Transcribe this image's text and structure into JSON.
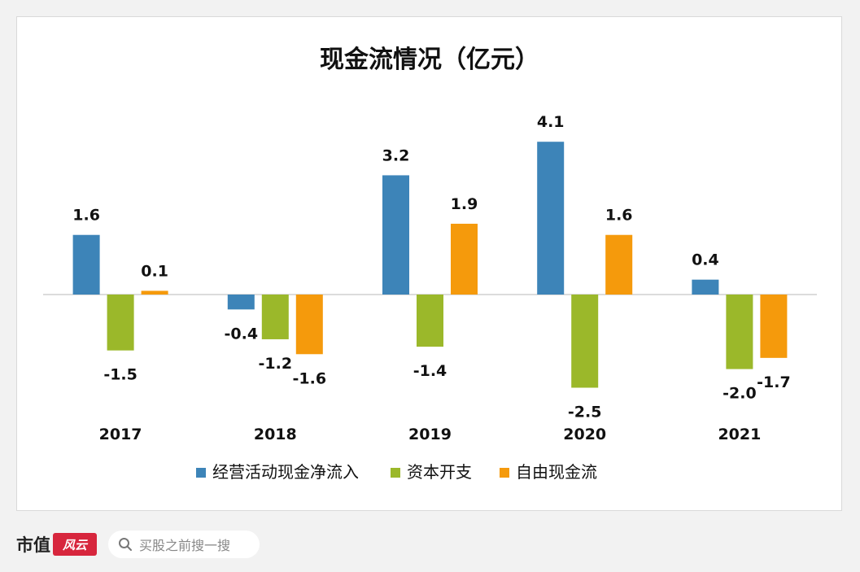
{
  "chart_data": {
    "type": "bar",
    "title": "现金流情况（亿元）",
    "categories": [
      "2017",
      "2018",
      "2019",
      "2020",
      "2021"
    ],
    "series": [
      {
        "name": "经营活动现金净流入",
        "color": "#3d84b8",
        "values": [
          1.6,
          -0.4,
          3.2,
          4.1,
          0.4
        ]
      },
      {
        "name": "资本开支",
        "color": "#9bb82a",
        "values": [
          -1.5,
          -1.2,
          -1.4,
          -2.5,
          -2.0
        ]
      },
      {
        "name": "自由现金流",
        "color": "#f59a0c",
        "values": [
          0.1,
          -1.6,
          1.9,
          1.6,
          -1.7
        ]
      }
    ],
    "value_labels": [
      [
        "1.6",
        "-0.4",
        "3.2",
        "4.1",
        "0.4"
      ],
      [
        "-1.5",
        "-1.2",
        "-1.4",
        "-2.5",
        "-2.0"
      ],
      [
        "0.1",
        "-1.6",
        "1.9",
        "1.6",
        "-1.7"
      ]
    ],
    "ylim": [
      -3.6,
      5.4
    ],
    "grid": false,
    "legend_position": "bottom"
  },
  "footer": {
    "brand_text": "市值",
    "brand_seal_text": "风云",
    "search_placeholder": "买股之前搜一搜"
  }
}
